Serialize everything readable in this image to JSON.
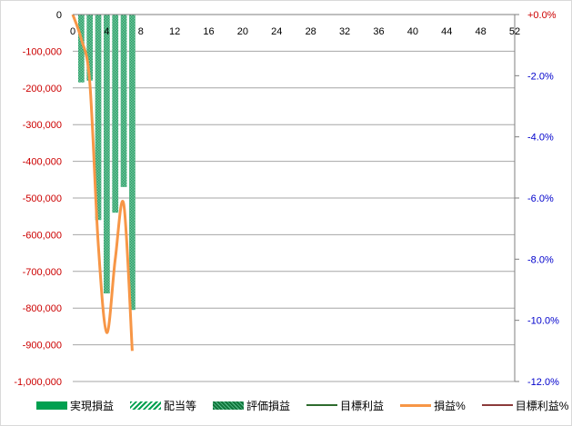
{
  "chart_data": {
    "type": "bar",
    "x_ticks": [
      0,
      4,
      8,
      12,
      16,
      20,
      24,
      28,
      32,
      36,
      40,
      44,
      48,
      52
    ],
    "xlim": [
      0,
      52
    ],
    "ylim_left": [
      -1000000,
      0
    ],
    "ylim_right": [
      -12.0,
      0.0
    ],
    "left_ticks": [
      "0",
      "-100,000",
      "-200,000",
      "-300,000",
      "-400,000",
      "-500,000",
      "-600,000",
      "-700,000",
      "-800,000",
      "-900,000",
      "-1,000,000"
    ],
    "left_tick_values": [
      0,
      -100000,
      -200000,
      -300000,
      -400000,
      -500000,
      -600000,
      -700000,
      -800000,
      -900000,
      -1000000
    ],
    "right_ticks": [
      "+0.0%",
      "-2.0%",
      "-4.0%",
      "-6.0%",
      "-8.0%",
      "-10.0%",
      "-12.0%"
    ],
    "right_tick_values": [
      0,
      -2,
      -4,
      -6,
      -8,
      -10,
      -12
    ],
    "grid": true,
    "legend_position": "bottom",
    "colors": {
      "realized": "#00a050",
      "dividend": "#00a050",
      "valuation": "#2f9e6a",
      "target": "#2e6b2e",
      "pct": "#f79646",
      "target_pct": "#8b3a3a",
      "left_axis_text": "#cc0000",
      "right_axis_text": "#0000cc",
      "right_zero_text": "#cc0000"
    },
    "series": [
      {
        "name": "実現損益",
        "kind": "bar",
        "x": [],
        "values": []
      },
      {
        "name": "配当等",
        "kind": "bar",
        "x": [],
        "values": []
      },
      {
        "name": "評価損益",
        "kind": "bar",
        "x": [
          1,
          2,
          3,
          4,
          5,
          6,
          7
        ],
        "values": [
          -185000,
          -180000,
          -560000,
          -760000,
          -540000,
          -470000,
          -805000
        ]
      },
      {
        "name": "目標利益",
        "kind": "line",
        "x": [],
        "values": []
      },
      {
        "name": "損益%",
        "kind": "line",
        "x": [
          0,
          1,
          2,
          3,
          4,
          5,
          6,
          7
        ],
        "values": [
          0.0,
          -0.8,
          -2.2,
          -7.5,
          -10.4,
          -8.0,
          -6.2,
          -11.0
        ]
      },
      {
        "name": "目標利益%",
        "kind": "line",
        "x": [],
        "values": []
      }
    ]
  }
}
